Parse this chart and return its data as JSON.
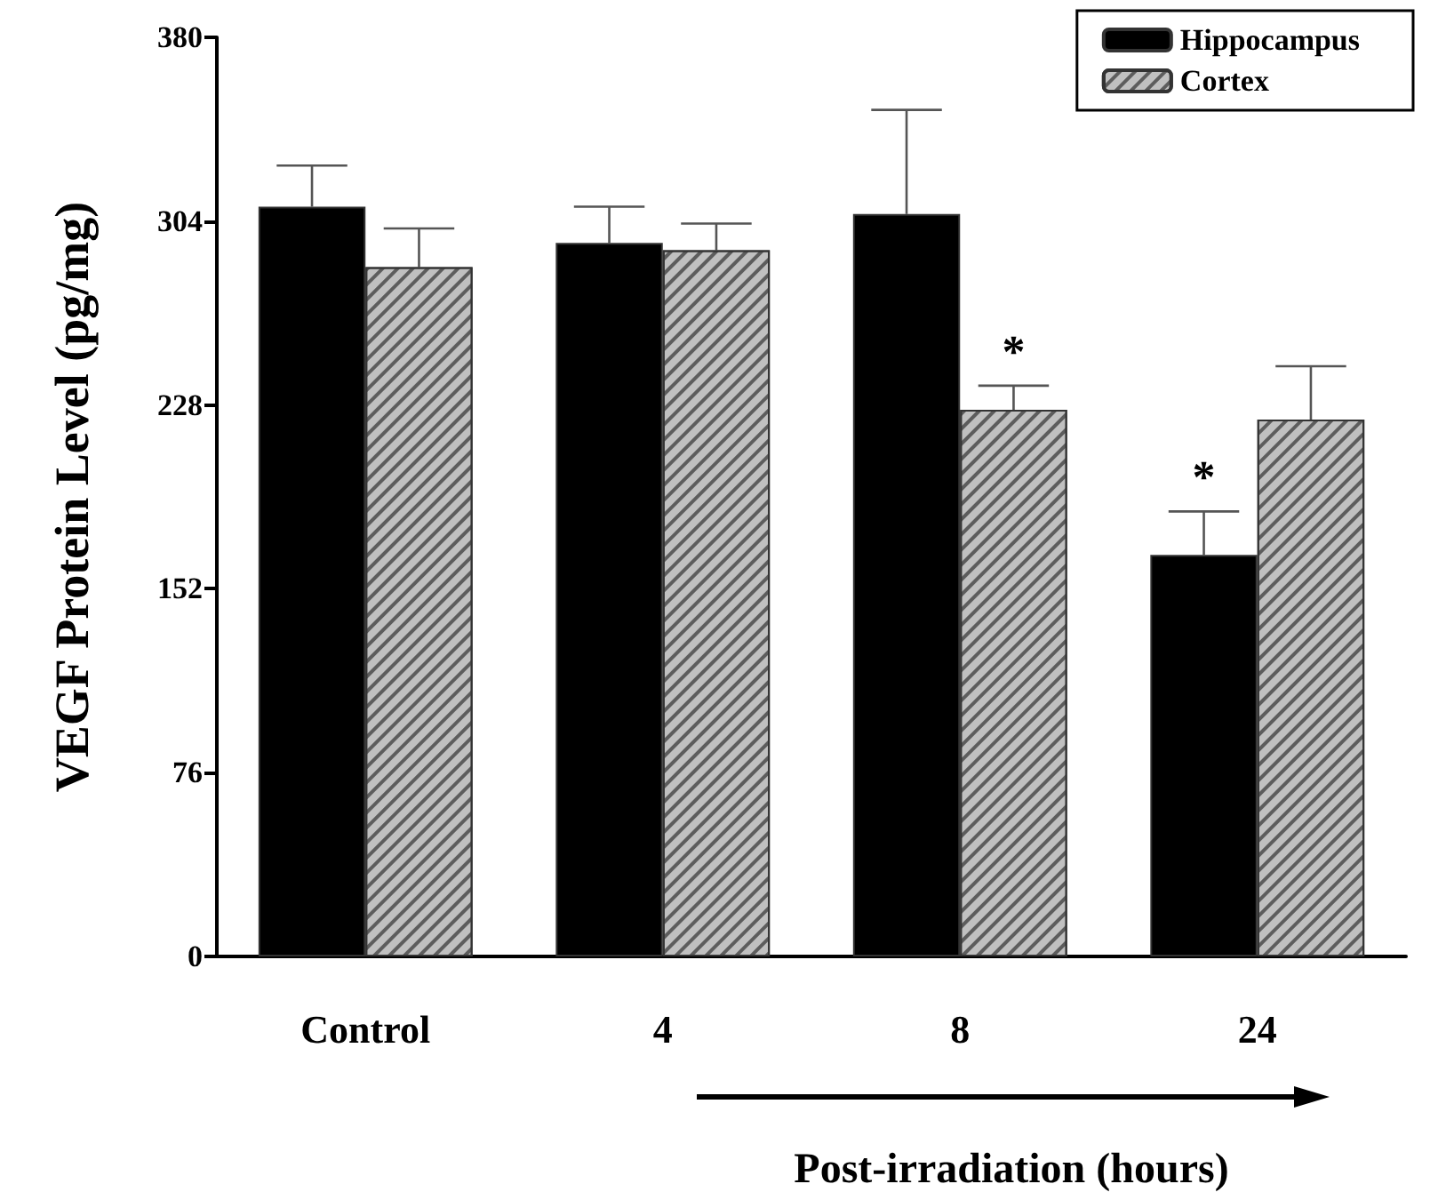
{
  "chart_data": {
    "type": "bar",
    "xlabel": "Post-irradiation (hours)",
    "ylabel": "VEGF Protein Level (pg/mg)",
    "categories": [
      "Control",
      "4",
      "8",
      "24"
    ],
    "series": [
      {
        "name": "Hippocampus",
        "color": "#000000",
        "values": [
          310,
          295,
          307,
          166
        ],
        "errors": [
          [
            310,
            327
          ],
          [
            295,
            310
          ],
          [
            307,
            350
          ],
          [
            166,
            184
          ]
        ]
      },
      {
        "name": "Cortex",
        "color": "#c0c0c0",
        "values": [
          285,
          292,
          226,
          222
        ],
        "errors": [
          [
            285,
            301
          ],
          [
            292,
            303
          ],
          [
            226,
            236
          ],
          [
            222,
            244
          ]
        ]
      }
    ],
    "ylim": [
      0,
      380
    ],
    "yticks": [
      0,
      76,
      152,
      228,
      304,
      380
    ],
    "grid": false,
    "legend": "top right",
    "annotations": [
      {
        "text": "*",
        "x": "8",
        "y": 236
      },
      {
        "text": "*",
        "x": "24",
        "y": 184
      }
    ]
  }
}
